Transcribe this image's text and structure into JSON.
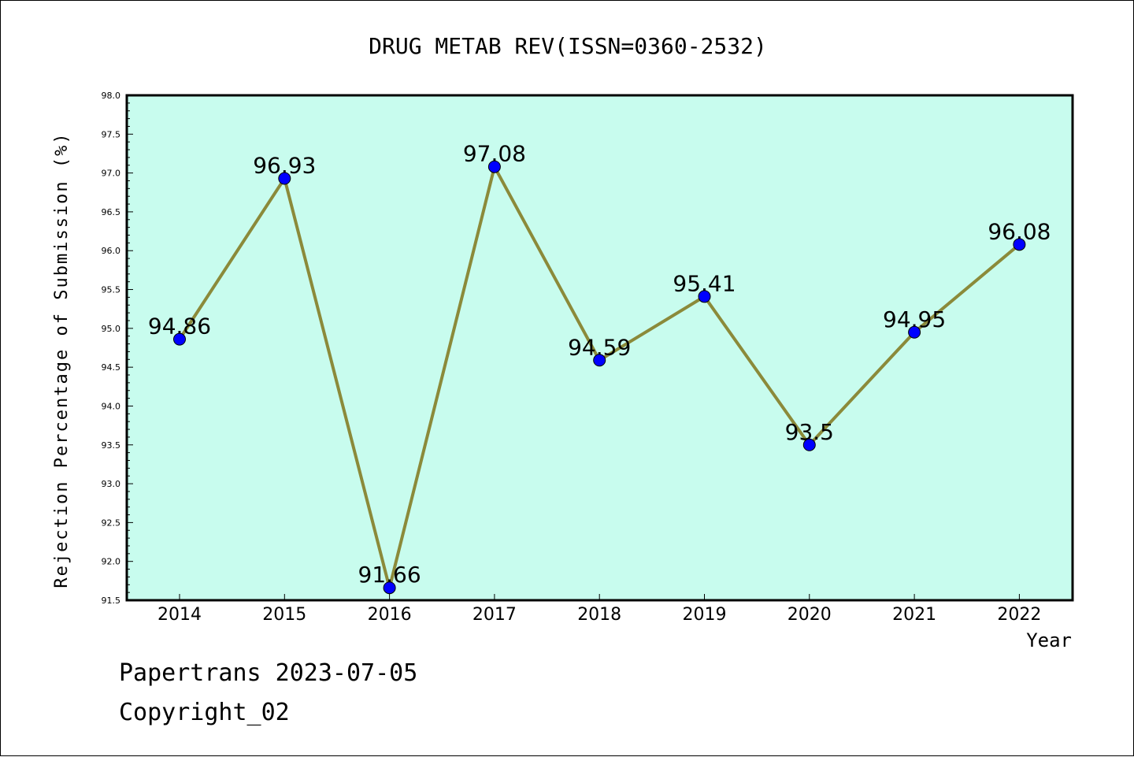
{
  "chart_data": {
    "type": "line",
    "title": "DRUG METAB REV(ISSN=0360-2532)",
    "xlabel": "Year",
    "ylabel": "Rejection Percentage of Submission (%)",
    "categories": [
      "2014",
      "2015",
      "2016",
      "2017",
      "2018",
      "2019",
      "2020",
      "2021",
      "2022"
    ],
    "values": [
      94.86,
      96.93,
      91.66,
      97.08,
      94.59,
      95.41,
      93.5,
      94.95,
      96.08
    ],
    "data_labels": [
      "94.86",
      "96.93",
      "91.66",
      "97.08",
      "94.59",
      "95.41",
      "93.5",
      "94.95",
      "96.08"
    ],
    "ylim": [
      91.5,
      98.0
    ],
    "y_ticks": [
      "91.5",
      "92.0",
      "92.5",
      "93.0",
      "93.5",
      "94.0",
      "94.5",
      "95.0",
      "95.5",
      "96.0",
      "96.5",
      "97.0",
      "97.5",
      "98.0"
    ],
    "grid": false,
    "colors": {
      "plot_background": "#c8fcee",
      "line": "#8b8a3a",
      "marker": "#0000ff"
    }
  },
  "footer": {
    "line1": "Papertrans 2023-07-05",
    "line2": "Copyright_02"
  }
}
